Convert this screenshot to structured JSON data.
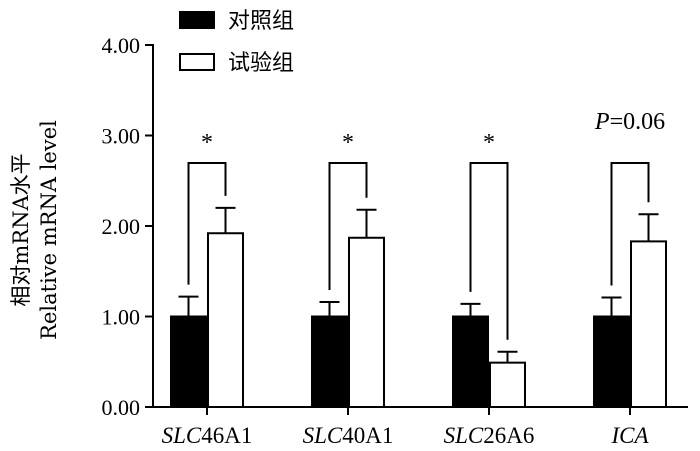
{
  "chart_data": {
    "type": "bar",
    "title": "",
    "ylabel_lines": [
      "相对mRNA水平",
      "Relative mRNA level"
    ],
    "ylim": [
      0,
      4
    ],
    "yticks": [
      "0.00",
      "1.00",
      "2.00",
      "3.00",
      "4.00"
    ],
    "categories": [
      {
        "prefix": "SLC",
        "suffix": "46A1"
      },
      {
        "prefix": "SLC",
        "suffix": "40A1"
      },
      {
        "prefix": "SLC",
        "suffix": "26A6"
      },
      {
        "prefix": "ICA",
        "suffix": ""
      }
    ],
    "legend_placement": "top-center",
    "series": [
      {
        "name": "对照组",
        "color": "#000000",
        "fill": "solid",
        "values": [
          1.0,
          1.0,
          1.0,
          1.0
        ],
        "errors": [
          0.22,
          0.16,
          0.14,
          0.21
        ]
      },
      {
        "name": "试验组",
        "color": "#ffffff",
        "fill": "outline",
        "values": [
          1.92,
          1.87,
          0.49,
          1.83
        ],
        "errors": [
          0.28,
          0.31,
          0.12,
          0.3
        ]
      }
    ],
    "annotations": [
      {
        "category_index": 0,
        "text": "*",
        "italic_prefix": "",
        "bracket": true
      },
      {
        "category_index": 1,
        "text": "*",
        "italic_prefix": "",
        "bracket": true
      },
      {
        "category_index": 2,
        "text": "*",
        "italic_prefix": "",
        "bracket": true
      },
      {
        "category_index": 3,
        "text": "=0.06",
        "italic_prefix": "P",
        "bracket": true
      }
    ],
    "grid": false
  }
}
